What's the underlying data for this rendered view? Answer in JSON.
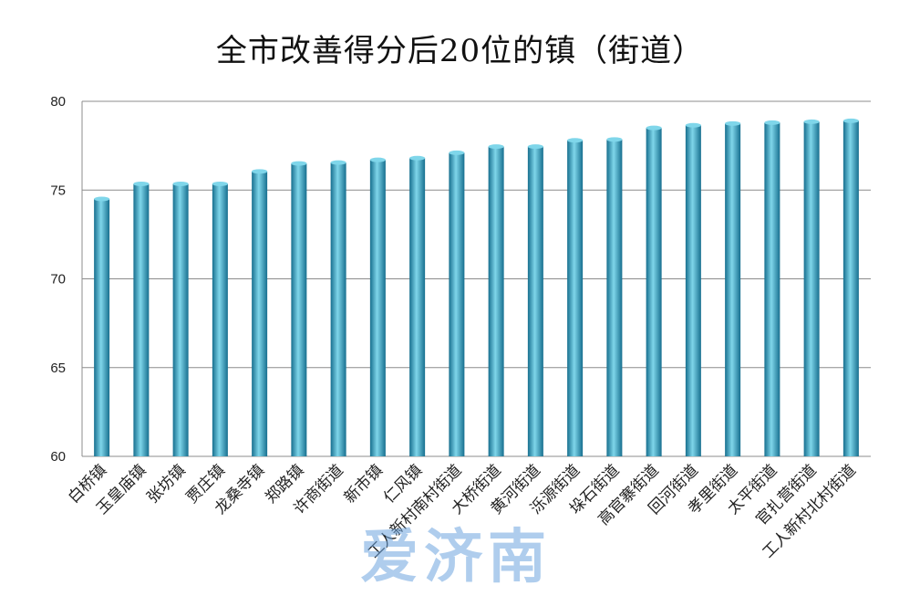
{
  "chart_data": {
    "type": "bar",
    "title": "全市改善得分后20位的镇（街道）",
    "categories": [
      "白桥镇",
      "玉皇庙镇",
      "张坊镇",
      "贾庄镇",
      "龙桑寺镇",
      "郑路镇",
      "许商街道",
      "新市镇",
      "仁风镇",
      "工人新村南村街道",
      "大桥街道",
      "黄河街道",
      "泺源街道",
      "垛石街道",
      "高官寨街道",
      "回河街道",
      "孝里街道",
      "太平街道",
      "官扎营街道",
      "工人新村北村街道"
    ],
    "values": [
      74.5,
      75.35,
      75.35,
      75.35,
      76.05,
      76.5,
      76.55,
      76.7,
      76.8,
      77.1,
      77.45,
      77.45,
      77.8,
      77.85,
      78.5,
      78.65,
      78.75,
      78.8,
      78.85,
      78.9
    ],
    "ylim": [
      60,
      80
    ],
    "yticks": [
      "60",
      "65",
      "70",
      "75",
      "80"
    ],
    "grid": true,
    "legend": "none",
    "bar_color": "#2aa6c8",
    "bar_color_dark": "#176f8f",
    "bar_color_light": "#7fd6ea"
  },
  "watermark": {
    "text": "爱济南",
    "color": "#6ea6e0"
  }
}
